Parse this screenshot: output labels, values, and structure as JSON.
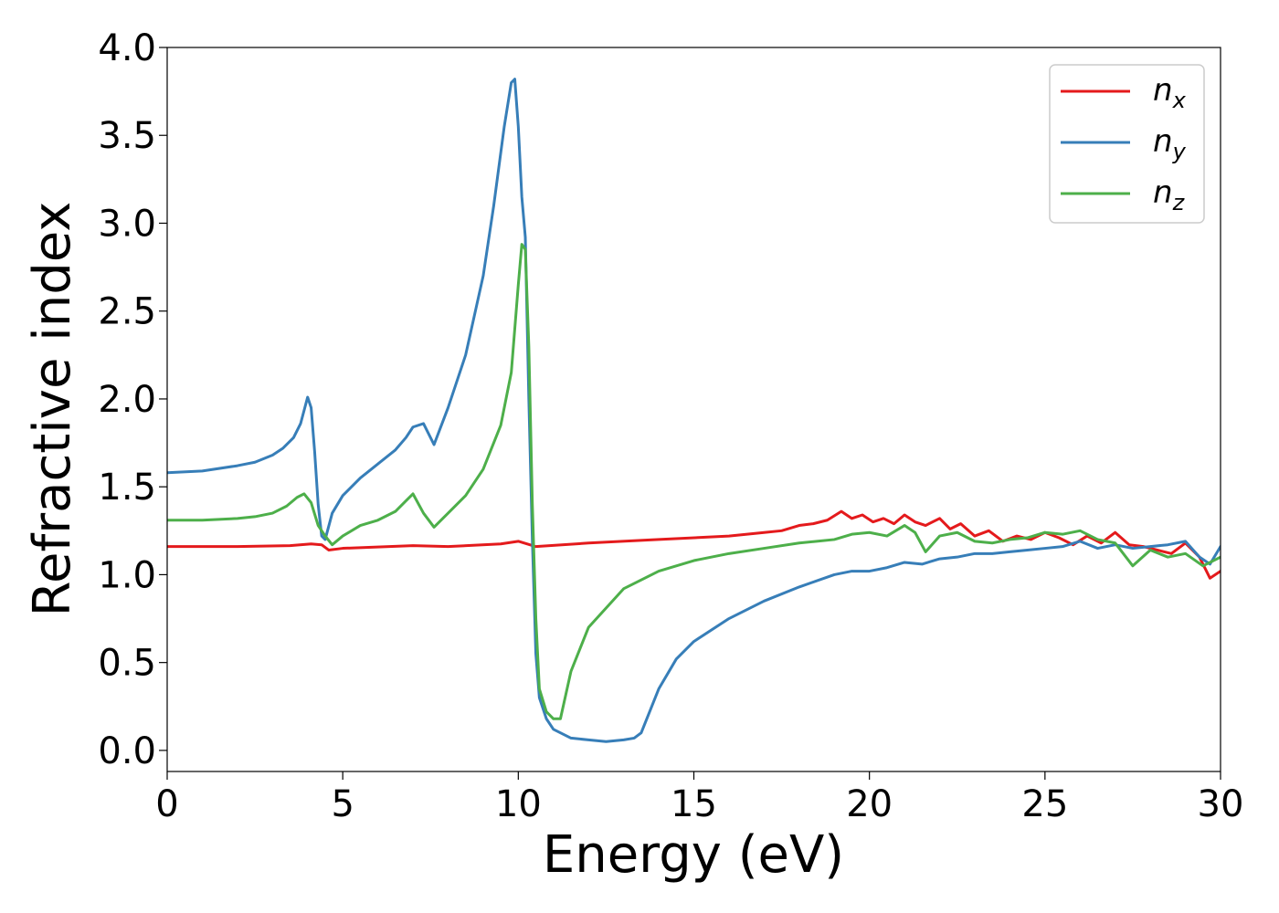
{
  "chart_data": {
    "type": "line",
    "xlabel": "Energy (eV)",
    "ylabel": "Refractive index",
    "xlim": [
      0,
      30
    ],
    "ylim": [
      -0.12,
      4.0
    ],
    "xticks": [
      0,
      5,
      10,
      15,
      20,
      25,
      30
    ],
    "xtick_labels": [
      "0",
      "5",
      "10",
      "15",
      "20",
      "25",
      "30"
    ],
    "yticks": [
      0.0,
      0.5,
      1.0,
      1.5,
      2.0,
      2.5,
      3.0,
      3.5,
      4.0
    ],
    "ytick_labels": [
      "0.0",
      "0.5",
      "1.0",
      "1.5",
      "2.0",
      "2.5",
      "3.0",
      "3.5",
      "4.0"
    ],
    "grid": false,
    "legend_position": "top-right",
    "series": [
      {
        "name": "n_x",
        "legend_main": "n",
        "legend_sub": "x",
        "color": "#e41a1c",
        "x": [
          0,
          2,
          3.5,
          4.1,
          4.4,
          4.6,
          5,
          7,
          8,
          9.5,
          10,
          10.5,
          12,
          14,
          16,
          17,
          17.5,
          18,
          18.4,
          18.8,
          19.2,
          19.5,
          19.8,
          20.1,
          20.4,
          20.7,
          21,
          21.3,
          21.6,
          22,
          22.3,
          22.6,
          23,
          23.4,
          23.8,
          24.2,
          24.6,
          25,
          25.4,
          25.8,
          26.2,
          26.6,
          27,
          27.4,
          27.8,
          28.2,
          28.6,
          29,
          29.4,
          29.7,
          30
        ],
        "y": [
          1.16,
          1.16,
          1.165,
          1.175,
          1.17,
          1.14,
          1.15,
          1.165,
          1.16,
          1.175,
          1.19,
          1.16,
          1.18,
          1.2,
          1.22,
          1.24,
          1.25,
          1.28,
          1.29,
          1.31,
          1.36,
          1.32,
          1.34,
          1.3,
          1.32,
          1.29,
          1.34,
          1.3,
          1.28,
          1.32,
          1.26,
          1.29,
          1.22,
          1.25,
          1.19,
          1.22,
          1.2,
          1.24,
          1.21,
          1.17,
          1.22,
          1.18,
          1.24,
          1.17,
          1.16,
          1.14,
          1.12,
          1.18,
          1.1,
          0.98,
          1.02
        ]
      },
      {
        "name": "n_y",
        "legend_main": "n",
        "legend_sub": "y",
        "color": "#377eb8",
        "x": [
          0,
          1,
          2,
          2.5,
          3,
          3.3,
          3.6,
          3.8,
          4.0,
          4.1,
          4.2,
          4.3,
          4.4,
          4.5,
          4.7,
          5,
          5.5,
          6,
          6.5,
          6.8,
          7.0,
          7.3,
          7.6,
          8.0,
          8.5,
          9.0,
          9.3,
          9.6,
          9.8,
          9.9,
          10.0,
          10.1,
          10.2,
          10.3,
          10.4,
          10.5,
          10.6,
          10.8,
          11.0,
          11.5,
          12.0,
          12.5,
          13.0,
          13.3,
          13.5,
          13.7,
          14.0,
          14.5,
          15,
          16,
          17,
          18,
          19,
          19.5,
          20,
          20.5,
          21,
          21.5,
          22,
          22.5,
          23,
          23.5,
          24,
          24.5,
          25,
          25.5,
          26,
          26.5,
          27,
          27.5,
          28,
          28.5,
          29,
          29.4,
          29.7,
          30
        ],
        "y": [
          1.58,
          1.59,
          1.62,
          1.64,
          1.68,
          1.72,
          1.78,
          1.86,
          2.01,
          1.95,
          1.7,
          1.4,
          1.22,
          1.2,
          1.35,
          1.45,
          1.55,
          1.63,
          1.71,
          1.78,
          1.84,
          1.86,
          1.74,
          1.95,
          2.25,
          2.7,
          3.1,
          3.55,
          3.8,
          3.82,
          3.55,
          3.15,
          2.92,
          2.0,
          1.2,
          0.55,
          0.3,
          0.18,
          0.12,
          0.07,
          0.06,
          0.05,
          0.06,
          0.07,
          0.1,
          0.2,
          0.35,
          0.52,
          0.62,
          0.75,
          0.85,
          0.93,
          1.0,
          1.02,
          1.02,
          1.04,
          1.07,
          1.06,
          1.09,
          1.1,
          1.12,
          1.12,
          1.13,
          1.14,
          1.15,
          1.16,
          1.19,
          1.15,
          1.17,
          1.15,
          1.16,
          1.17,
          1.19,
          1.1,
          1.06,
          1.16
        ]
      },
      {
        "name": "n_z",
        "legend_main": "n",
        "legend_sub": "z",
        "color": "#4daf4a",
        "x": [
          0,
          1,
          2,
          2.5,
          3,
          3.4,
          3.7,
          3.9,
          4.1,
          4.3,
          4.5,
          4.7,
          5.0,
          5.5,
          6,
          6.5,
          6.8,
          7.0,
          7.3,
          7.6,
          8.0,
          8.5,
          9.0,
          9.5,
          9.8,
          10.0,
          10.1,
          10.2,
          10.3,
          10.4,
          10.5,
          10.6,
          10.8,
          11.0,
          11.2,
          11.5,
          12,
          13,
          14,
          15,
          16,
          17,
          18,
          18.5,
          19,
          19.5,
          20,
          20.5,
          21,
          21.3,
          21.6,
          22,
          22.5,
          23,
          23.5,
          24,
          24.5,
          25,
          25.5,
          26,
          26.5,
          27,
          27.5,
          28,
          28.5,
          29,
          29.5,
          30
        ],
        "y": [
          1.31,
          1.31,
          1.32,
          1.33,
          1.35,
          1.39,
          1.44,
          1.46,
          1.41,
          1.28,
          1.22,
          1.17,
          1.22,
          1.28,
          1.31,
          1.36,
          1.42,
          1.46,
          1.35,
          1.27,
          1.35,
          1.45,
          1.6,
          1.85,
          2.15,
          2.65,
          2.88,
          2.85,
          2.3,
          1.4,
          0.75,
          0.35,
          0.22,
          0.18,
          0.18,
          0.45,
          0.7,
          0.92,
          1.02,
          1.08,
          1.12,
          1.15,
          1.18,
          1.19,
          1.2,
          1.23,
          1.24,
          1.22,
          1.28,
          1.24,
          1.13,
          1.22,
          1.24,
          1.19,
          1.18,
          1.2,
          1.21,
          1.24,
          1.23,
          1.25,
          1.2,
          1.18,
          1.05,
          1.14,
          1.1,
          1.12,
          1.05,
          1.1
        ]
      }
    ]
  }
}
